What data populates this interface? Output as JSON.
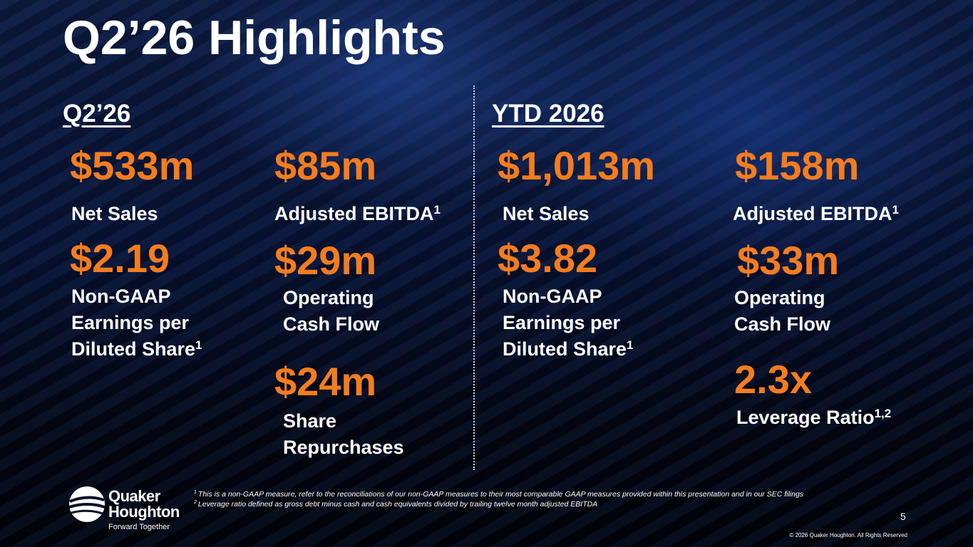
{
  "header": {
    "title": "Q2’26 Highlights"
  },
  "sections": [
    {
      "heading": "Q2’26",
      "metrics": [
        {
          "value": "$533m",
          "lines": [
            "Net Sales"
          ]
        },
        {
          "value": "$85m",
          "lines": [
            "Adjusted EBITDA"
          ],
          "note": "1"
        },
        {
          "value": "$2.19",
          "lines": [
            "Non-GAAP",
            "Earnings per",
            "Diluted Share"
          ],
          "note": "1"
        },
        {
          "value": "$29m",
          "lines": [
            "Operating",
            "Cash Flow"
          ]
        },
        {
          "value": "$24m",
          "lines": [
            "Share",
            "Repurchases"
          ]
        }
      ]
    },
    {
      "heading": "YTD 2026",
      "metrics": [
        {
          "value": "$1,013m",
          "lines": [
            "Net Sales"
          ]
        },
        {
          "value": "$158m",
          "lines": [
            "Adjusted EBITDA"
          ],
          "note": "1"
        },
        {
          "value": "$3.82",
          "lines": [
            "Non-GAAP",
            "Earnings per",
            "Diluted Share"
          ],
          "note": "1"
        },
        {
          "value": "$33m",
          "lines": [
            "Operating",
            "Cash Flow"
          ]
        },
        {
          "value": "2.3x",
          "lines": [
            "Leverage Ratio"
          ],
          "note": "1,2"
        }
      ]
    }
  ],
  "footnotes": [
    {
      "mark": "1",
      "text": "This is a non-GAAP measure, refer to the reconciliations of our non-GAAP measures to their most comparable GAAP measures provided within this presentation and in our SEC filings"
    },
    {
      "mark": "2",
      "text": "Leverage ratio defined as gross debt minus cash and cash equivalents divided by trailing twelve month adjusted EBITDA"
    }
  ],
  "logo": {
    "line1": "Quaker",
    "line2": "Houghton",
    "tagline": "Forward Together"
  },
  "page_number": "5",
  "copyright": "© 2026 Quaker Houghton. All Rights Reserved"
}
